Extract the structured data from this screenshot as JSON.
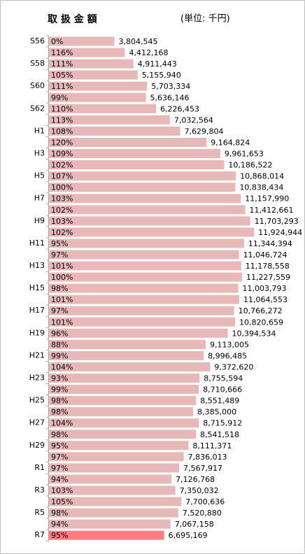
{
  "chart_data": {
    "type": "barh",
    "title": "取 扱 金 額",
    "subtitle": "(単位: 千円)",
    "categories": [
      "S56",
      null,
      "S58",
      null,
      "S60",
      null,
      "S62",
      null,
      "H1",
      null,
      "H3",
      null,
      "H5",
      null,
      "H7",
      null,
      "H9",
      null,
      "H11",
      null,
      "H13",
      null,
      "H15",
      null,
      "H17",
      null,
      "H19",
      null,
      "H21",
      null,
      "H23",
      null,
      "H25",
      null,
      "H27",
      null,
      "H29",
      null,
      "R1",
      null,
      "R3",
      null,
      "R5",
      null,
      "R7"
    ],
    "values": [
      3804545,
      4412168,
      4911443,
      5155940,
      5703334,
      5636146,
      6226453,
      7032564,
      7629804,
      9164824,
      9961653,
      10186522,
      10868014,
      10838434,
      11157990,
      11412661,
      11703293,
      11924944,
      11344394,
      11046724,
      11178558,
      11227559,
      11003793,
      11064553,
      10766272,
      10820659,
      10394534,
      9113005,
      8996485,
      9372620,
      8755594,
      8710666,
      8551489,
      8385000,
      8715912,
      8541518,
      8111371,
      7836013,
      7567917,
      7126768,
      7350032,
      7700636,
      7520880,
      7067158,
      6695169
    ],
    "value_labels": [
      "3,804,545",
      "4,412,168",
      "4,911,443",
      "5,155,940",
      "5,703,334",
      "5,636,146",
      "6,226,453",
      "7,032,564",
      "7,629,804",
      "9,164,824",
      "9,961,653",
      "10,186,522",
      "10,868,014",
      "10,838,434",
      "11,157,990",
      "11,412,661",
      "11,703,293",
      "11,924,944",
      "11,344,394",
      "11,046,724",
      "11,178,558",
      "11,227,559",
      "11,003,793",
      "11,064,553",
      "10,766,272",
      "10,820,659",
      "10,394,534",
      "9,113,005",
      "8,996,485",
      "9,372,620",
      "8,755,594",
      "8,710,666",
      "8,551,489",
      "8,385,000",
      "8,715,912",
      "8,541,518",
      "8,111,371",
      "7,836,013",
      "7,567,917",
      "7,126,768",
      "7,350,032",
      "7,700,636",
      "7,520,880",
      "7,067,158",
      "6,695,169"
    ],
    "change_labels": [
      "0%",
      "116%",
      "111%",
      "105%",
      "111%",
      "99%",
      "110%",
      "113%",
      "108%",
      "120%",
      "109%",
      "102%",
      "107%",
      "100%",
      "103%",
      "102%",
      "103%",
      "102%",
      "95%",
      "97%",
      "101%",
      "100%",
      "98%",
      "101%",
      "97%",
      "101%",
      "96%",
      "88%",
      "99%",
      "104%",
      "93%",
      "99%",
      "98%",
      "98%",
      "104%",
      "98%",
      "95%",
      "97%",
      "97%",
      "94%",
      "103%",
      "105%",
      "98%",
      "94%",
      "95%"
    ],
    "colors": [
      "#e6b8b7",
      "#e6b8b7",
      "#e6b8b7",
      "#e6b8b7",
      "#e6b8b7",
      "#e6b8b7",
      "#e6b8b7",
      "#e6b8b7",
      "#e6b8b7",
      "#e6b8b7",
      "#e6b8b7",
      "#e6b8b7",
      "#e6b8b7",
      "#e6b8b7",
      "#e6b8b7",
      "#e6b8b7",
      "#e6b8b7",
      "#e6b8b7",
      "#e6b8b7",
      "#e6b8b7",
      "#e6b8b7",
      "#e6b8b7",
      "#e6b8b7",
      "#e6b8b7",
      "#e6b8b7",
      "#e6b8b7",
      "#e6b8b7",
      "#e6b8b7",
      "#e6b8b7",
      "#e6b8b7",
      "#e6b8b7",
      "#e6b8b7",
      "#e6b8b7",
      "#e6b8b7",
      "#e6b8b7",
      "#e6b8b7",
      "#e6b8b7",
      "#e6b8b7",
      "#e6b8b7",
      "#e6b8b7",
      "#e6b8b7",
      "#e6b8b7",
      "#e6b8b7",
      "#e6b8b7",
      "#ff7c80"
    ],
    "xlim": [
      0,
      12000000
    ]
  }
}
